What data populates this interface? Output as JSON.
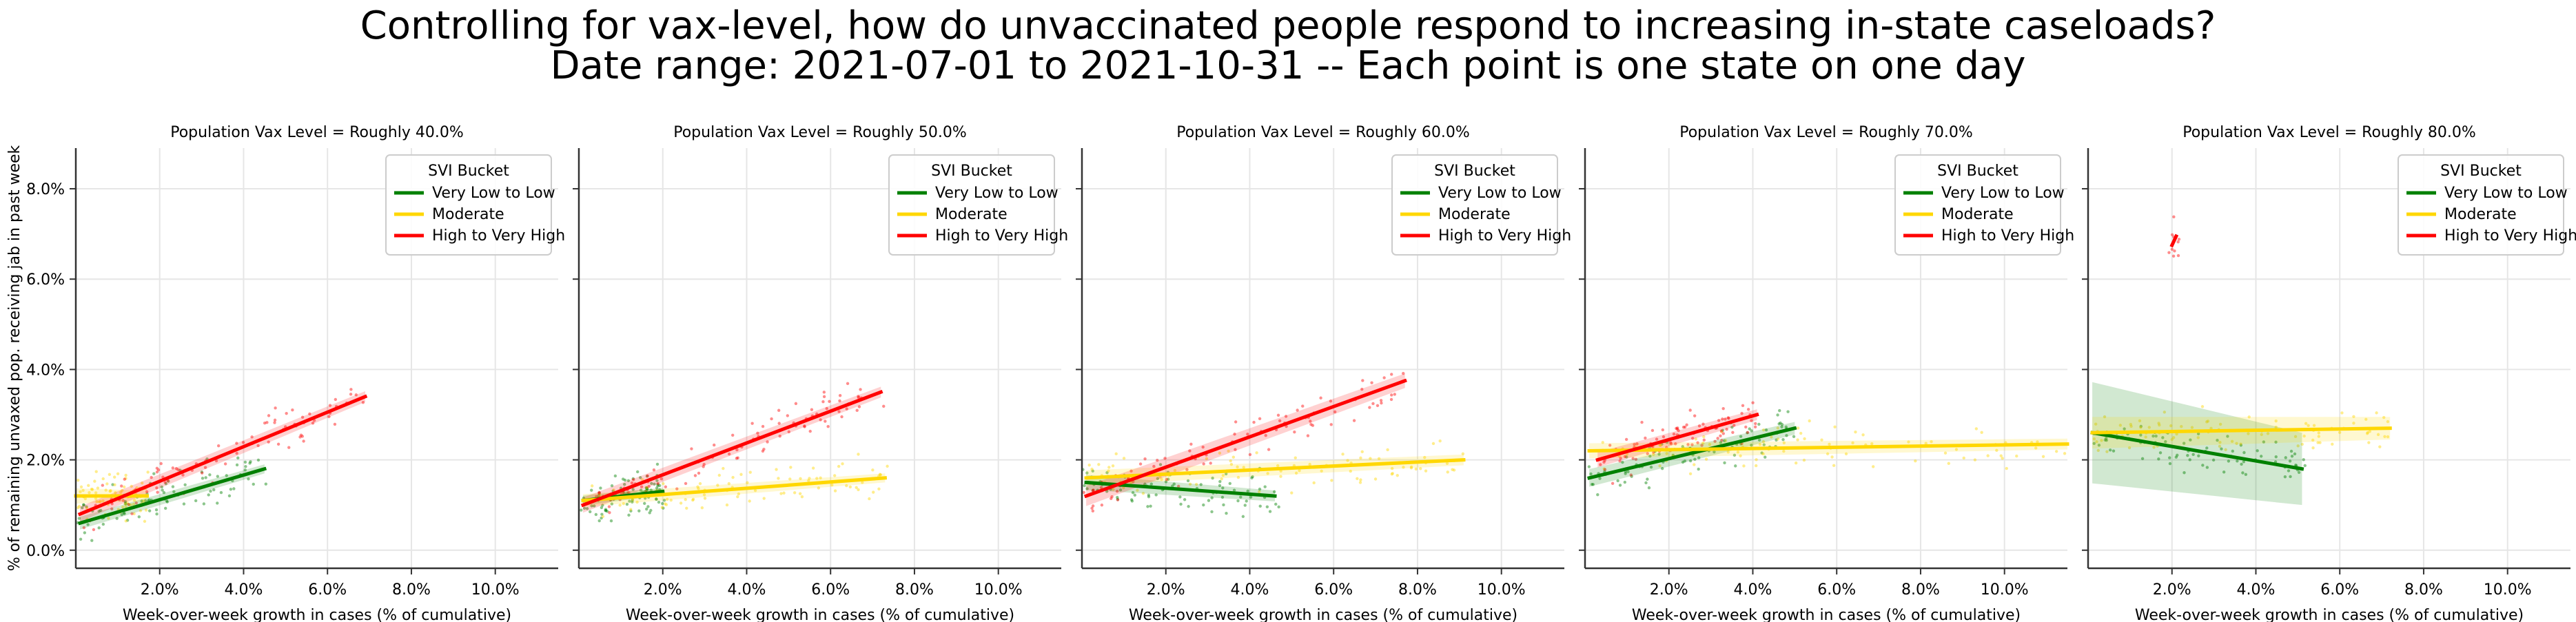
{
  "figure": {
    "title_line1": "Controlling for vax-level, how do unvaccinated people respond to increasing in-state caseloads?",
    "title_line2": "Date range: 2021-07-01 to 2021-10-31 -- Each point is one state on one day",
    "ylabel": "% of remaining unvaxed pop. receiving jab in past week",
    "xlabel": "Week-over-week growth in cases (% of cumulative)",
    "legend_title": "SVI Bucket",
    "colors": {
      "Very Low to Low": "#008000",
      "Moderate": "#ffd700",
      "High to Very High": "#ff0000",
      "axis": "#333333",
      "grid": "#e6e6e6"
    }
  },
  "chart_data": [
    {
      "type": "scatter",
      "title": "Population Vax Level = Roughly 40.0%",
      "xlabel": "Week-over-week growth in cases (% of cumulative)",
      "ylabel": "% of remaining unvaxed pop. receiving jab in past week",
      "xlim": [
        0,
        11.5
      ],
      "ylim": [
        -0.4,
        8.9
      ],
      "xticks": [
        "2.0%",
        "4.0%",
        "6.0%",
        "8.0%",
        "10.0%"
      ],
      "yticks": [
        "0.0%",
        "2.0%",
        "4.0%",
        "6.0%",
        "8.0%"
      ],
      "grid": true,
      "legend_position": "top-right",
      "series": [
        {
          "name": "Very Low to Low",
          "color": "#008000",
          "fit": [
            [
              0.1,
              0.6
            ],
            [
              4.5,
              1.8
            ]
          ],
          "band": 0.1
        },
        {
          "name": "Moderate",
          "color": "#ffd700",
          "fit": [
            [
              0.0,
              1.2
            ],
            [
              1.7,
              1.2
            ]
          ],
          "band": 0.12
        },
        {
          "name": "High to Very High",
          "color": "#ff0000",
          "fit": [
            [
              0.1,
              0.8
            ],
            [
              6.9,
              3.4
            ]
          ],
          "band": 0.12
        }
      ]
    },
    {
      "type": "scatter",
      "title": "Population Vax Level = Roughly 50.0%",
      "xlabel": "Week-over-week growth in cases (% of cumulative)",
      "xlim": [
        0,
        11.5
      ],
      "ylim": [
        -0.4,
        8.9
      ],
      "xticks": [
        "2.0%",
        "4.0%",
        "6.0%",
        "8.0%",
        "10.0%"
      ],
      "grid": true,
      "legend_position": "top-right",
      "series": [
        {
          "name": "Very Low to Low",
          "color": "#008000",
          "fit": [
            [
              0.1,
              1.1
            ],
            [
              2.0,
              1.3
            ]
          ],
          "band": 0.08
        },
        {
          "name": "Moderate",
          "color": "#ffd700",
          "fit": [
            [
              0.1,
              1.1
            ],
            [
              7.3,
              1.6
            ]
          ],
          "band": 0.1
        },
        {
          "name": "High to Very High",
          "color": "#ff0000",
          "fit": [
            [
              0.1,
              1.0
            ],
            [
              7.2,
              3.5
            ]
          ],
          "band": 0.12
        }
      ]
    },
    {
      "type": "scatter",
      "title": "Population Vax Level = Roughly 60.0%",
      "xlabel": "Week-over-week growth in cases (% of cumulative)",
      "xlim": [
        0,
        11.5
      ],
      "ylim": [
        -0.4,
        8.9
      ],
      "xticks": [
        "2.0%",
        "4.0%",
        "6.0%",
        "8.0%",
        "10.0%"
      ],
      "grid": true,
      "legend_position": "top-right",
      "series": [
        {
          "name": "Very Low to Low",
          "color": "#008000",
          "fit": [
            [
              0.1,
              1.5
            ],
            [
              4.6,
              1.2
            ]
          ],
          "band": 0.12
        },
        {
          "name": "Moderate",
          "color": "#ffd700",
          "fit": [
            [
              0.1,
              1.6
            ],
            [
              9.1,
              2.0
            ]
          ],
          "band": 0.12
        },
        {
          "name": "High to Very High",
          "color": "#ff0000",
          "fit": [
            [
              0.1,
              1.2
            ],
            [
              7.7,
              3.75
            ]
          ],
          "band": 0.16
        }
      ]
    },
    {
      "type": "scatter",
      "title": "Population Vax Level = Roughly 70.0%",
      "xlabel": "Week-over-week growth in cases (% of cumulative)",
      "xlim": [
        0,
        11.5
      ],
      "ylim": [
        -0.4,
        8.9
      ],
      "xticks": [
        "2.0%",
        "4.0%",
        "6.0%",
        "8.0%",
        "10.0%"
      ],
      "grid": true,
      "legend_position": "top-right",
      "series": [
        {
          "name": "Very Low to Low",
          "color": "#008000",
          "fit": [
            [
              0.1,
              1.6
            ],
            [
              5.0,
              2.7
            ]
          ],
          "band": 0.14
        },
        {
          "name": "Moderate",
          "color": "#ffd700",
          "fit": [
            [
              0.1,
              2.2
            ],
            [
              11.5,
              2.35
            ]
          ],
          "band": 0.12
        },
        {
          "name": "High to Very High",
          "color": "#ff0000",
          "fit": [
            [
              0.3,
              2.0
            ],
            [
              4.1,
              3.0
            ]
          ],
          "band": 0.12
        }
      ]
    },
    {
      "type": "scatter",
      "title": "Population Vax Level = Roughly 80.0%",
      "xlabel": "Week-over-week growth in cases (% of cumulative)",
      "xlim": [
        0,
        11.5
      ],
      "ylim": [
        -0.4,
        8.9
      ],
      "xticks": [
        "2.0%",
        "4.0%",
        "6.0%",
        "8.0%",
        "10.0%"
      ],
      "grid": true,
      "legend_position": "top-right",
      "series": [
        {
          "name": "Very Low to Low",
          "color": "#008000",
          "fit": [
            [
              0.1,
              2.6
            ],
            [
              5.1,
              1.8
            ]
          ],
          "band": 0.8
        },
        {
          "name": "Moderate",
          "color": "#ffd700",
          "fit": [
            [
              0.1,
              2.6
            ],
            [
              7.2,
              2.7
            ]
          ],
          "band": 0.25
        },
        {
          "name": "High to Very High",
          "color": "#ff0000",
          "fit": [
            [
              2.0,
              6.75
            ],
            [
              2.1,
              6.95
            ]
          ],
          "band": 0.05
        }
      ]
    }
  ]
}
